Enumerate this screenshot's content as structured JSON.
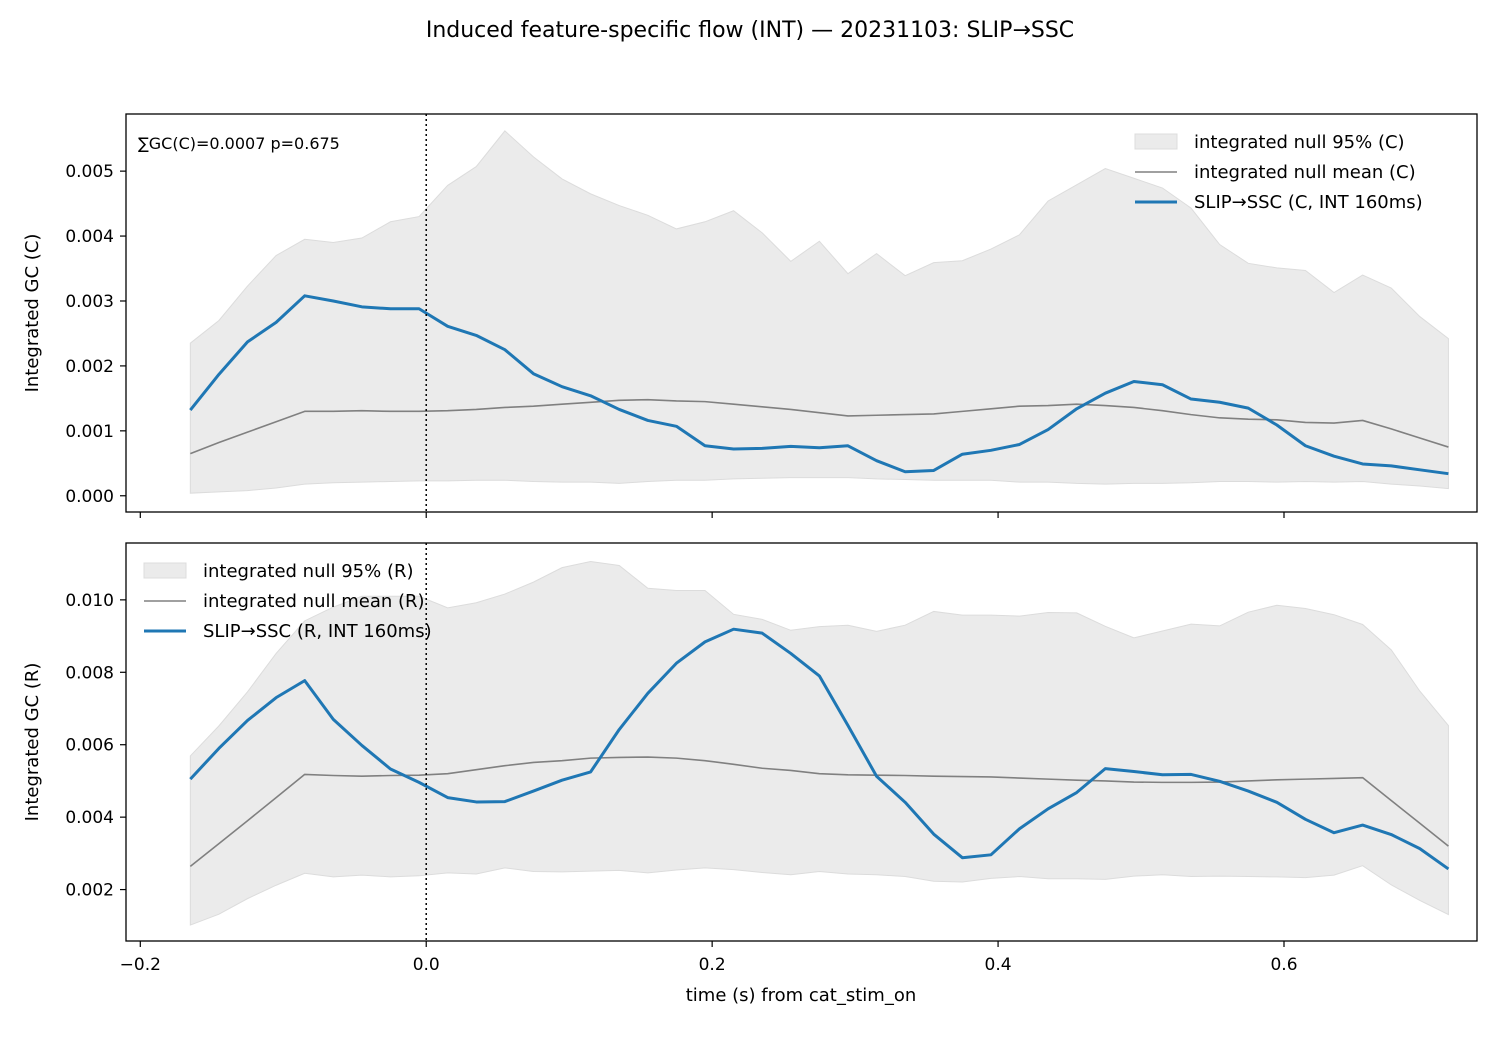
{
  "figure": {
    "title": "Induced feature-specific flow (INT) — 20231103: SLIP→SSC",
    "xlabel": "time (s) from cat_stim_on"
  },
  "colors": {
    "series_line": "#1f77b4",
    "null_mean": "#808080",
    "null_band": "#ebebeb",
    "band_edge": "#dcdcdc",
    "axes": "#000000"
  },
  "chart_data": [
    {
      "type": "line",
      "panel": "top",
      "ylabel": "Integrated GC (C)",
      "annotation": "∑GC(C)=0.0007  p=0.675",
      "legend_position": "upper right",
      "legend": [
        "integrated null 95% (C)",
        "integrated null mean (C)",
        "SLIP→SSC (C, INT 160ms)"
      ],
      "xlim": [
        -0.21,
        0.735
      ],
      "ylim": [
        -0.00025,
        0.00588
      ],
      "xticks": [
        -0.2,
        0.0,
        0.2,
        0.4,
        0.6
      ],
      "xtick_labels": [
        "−0.2",
        "0.0",
        "0.2",
        "0.4",
        "0.6"
      ],
      "yticks": [
        0.0,
        0.001,
        0.002,
        0.003,
        0.004,
        0.005
      ],
      "ytick_labels": [
        "0.000",
        "0.001",
        "0.002",
        "0.003",
        "0.004",
        "0.005"
      ],
      "vline_x": 0.0,
      "x": [
        -0.165,
        -0.145,
        -0.125,
        -0.105,
        -0.085,
        -0.065,
        -0.045,
        -0.025,
        -0.005,
        0.015,
        0.035,
        0.055,
        0.075,
        0.095,
        0.115,
        0.135,
        0.155,
        0.175,
        0.195,
        0.215,
        0.235,
        0.255,
        0.275,
        0.295,
        0.315,
        0.335,
        0.355,
        0.375,
        0.395,
        0.415,
        0.435,
        0.455,
        0.475,
        0.495,
        0.515,
        0.535,
        0.555,
        0.575,
        0.595,
        0.615,
        0.635,
        0.655,
        0.675,
        0.695,
        0.715
      ],
      "series": [
        {
          "name": "SLIP→SSC (C, INT 160ms)",
          "role": "signal",
          "values": [
            0.00132,
            0.00187,
            0.00237,
            0.00267,
            0.00308,
            0.003,
            0.00291,
            0.00288,
            0.00288,
            0.00261,
            0.00247,
            0.00225,
            0.00188,
            0.00168,
            0.00154,
            0.00133,
            0.00116,
            0.00107,
            0.00077,
            0.00072,
            0.00073,
            0.00076,
            0.00074,
            0.00077,
            0.00054,
            0.00037,
            0.00039,
            0.00064,
            0.0007,
            0.00079,
            0.00102,
            0.00134,
            0.00158,
            0.00176,
            0.00171,
            0.00149,
            0.00144,
            0.00135,
            0.00109,
            0.00077,
            0.00061,
            0.00049,
            0.00046,
            0.0004,
            0.00034
          ]
        },
        {
          "name": "integrated null mean (C)",
          "role": "mean",
          "values": [
            0.00065,
            0.00082,
            0.00098,
            0.00114,
            0.0013,
            0.0013,
            0.00131,
            0.0013,
            0.0013,
            0.00131,
            0.00133,
            0.00136,
            0.00138,
            0.00141,
            0.00144,
            0.00147,
            0.00148,
            0.00146,
            0.00145,
            0.00141,
            0.00137,
            0.00133,
            0.00128,
            0.00123,
            0.00124,
            0.00125,
            0.00126,
            0.0013,
            0.00134,
            0.00138,
            0.00139,
            0.00141,
            0.00139,
            0.00136,
            0.00131,
            0.00125,
            0.0012,
            0.00118,
            0.00117,
            0.00113,
            0.00112,
            0.00116,
            0.00103,
            0.00089,
            0.00075
          ]
        }
      ],
      "band": {
        "name": "integrated null 95% (C)",
        "lower": [
          4e-05,
          6e-05,
          8e-05,
          0.00012,
          0.00018,
          0.0002,
          0.00021,
          0.00022,
          0.00023,
          0.00023,
          0.00024,
          0.00024,
          0.00022,
          0.00021,
          0.00021,
          0.00019,
          0.00022,
          0.00024,
          0.00024,
          0.00026,
          0.00027,
          0.00028,
          0.00028,
          0.00028,
          0.00026,
          0.00025,
          0.00024,
          0.00024,
          0.00024,
          0.00021,
          0.00021,
          0.00019,
          0.00018,
          0.00019,
          0.00019,
          0.0002,
          0.00022,
          0.00022,
          0.00021,
          0.00022,
          0.00021,
          0.00022,
          0.00018,
          0.00015,
          0.00011
        ],
        "upper": [
          0.00235,
          0.0027,
          0.00323,
          0.0037,
          0.00395,
          0.0039,
          0.00397,
          0.00422,
          0.0043,
          0.00478,
          0.00507,
          0.00562,
          0.00522,
          0.00488,
          0.00465,
          0.00447,
          0.00432,
          0.00411,
          0.00422,
          0.00439,
          0.00405,
          0.00361,
          0.00392,
          0.00342,
          0.00373,
          0.00339,
          0.00359,
          0.00362,
          0.0038,
          0.00402,
          0.00454,
          0.00479,
          0.00504,
          0.00489,
          0.00474,
          0.00443,
          0.00387,
          0.00358,
          0.00351,
          0.00347,
          0.00313,
          0.0034,
          0.0032,
          0.00276,
          0.00242
        ]
      }
    },
    {
      "type": "line",
      "panel": "bottom",
      "ylabel": "Integrated GC (R)",
      "legend_position": "upper left",
      "legend": [
        "integrated null 95% (R)",
        "integrated null mean (R)",
        "SLIP→SSC (R, INT 160ms)"
      ],
      "xlim": [
        -0.21,
        0.735
      ],
      "ylim": [
        0.00058,
        0.01157
      ],
      "xticks": [
        -0.2,
        0.0,
        0.2,
        0.4,
        0.6
      ],
      "xtick_labels": [
        "−0.2",
        "0.0",
        "0.2",
        "0.4",
        "0.6"
      ],
      "yticks": [
        0.002,
        0.004,
        0.006,
        0.008,
        0.01
      ],
      "ytick_labels": [
        "0.002",
        "0.004",
        "0.006",
        "0.008",
        "0.010"
      ],
      "vline_x": 0.0,
      "x": [
        -0.165,
        -0.145,
        -0.125,
        -0.105,
        -0.085,
        -0.065,
        -0.045,
        -0.025,
        -0.005,
        0.015,
        0.035,
        0.055,
        0.075,
        0.095,
        0.115,
        0.135,
        0.155,
        0.175,
        0.195,
        0.215,
        0.235,
        0.255,
        0.275,
        0.295,
        0.315,
        0.335,
        0.355,
        0.375,
        0.395,
        0.415,
        0.435,
        0.455,
        0.475,
        0.495,
        0.515,
        0.535,
        0.555,
        0.575,
        0.595,
        0.615,
        0.635,
        0.655,
        0.675,
        0.695,
        0.715
      ],
      "series": [
        {
          "name": "SLIP→SSC (R, INT 160ms)",
          "role": "signal",
          "values": [
            0.00505,
            0.0059,
            0.00667,
            0.0073,
            0.00777,
            0.0067,
            0.00598,
            0.00533,
            0.00496,
            0.00454,
            0.00442,
            0.00443,
            0.00472,
            0.00502,
            0.00525,
            0.00642,
            0.00742,
            0.00825,
            0.00884,
            0.00919,
            0.00908,
            0.00852,
            0.0079,
            0.00653,
            0.00513,
            0.00441,
            0.00353,
            0.00288,
            0.00296,
            0.00368,
            0.00423,
            0.00468,
            0.00534,
            0.00526,
            0.00517,
            0.00518,
            0.00499,
            0.00472,
            0.00441,
            0.00394,
            0.00357,
            0.00378,
            0.00352,
            0.00313,
            0.00257
          ]
        },
        {
          "name": "integrated null mean (R)",
          "role": "mean",
          "values": [
            0.00264,
            0.00327,
            0.0039,
            0.00454,
            0.00518,
            0.00515,
            0.00513,
            0.00515,
            0.00516,
            0.0052,
            0.00531,
            0.00542,
            0.00551,
            0.00556,
            0.00563,
            0.00565,
            0.00566,
            0.00563,
            0.00556,
            0.00546,
            0.00535,
            0.00529,
            0.0052,
            0.00517,
            0.00516,
            0.00515,
            0.00513,
            0.00512,
            0.00511,
            0.00508,
            0.00505,
            0.00502,
            0.005,
            0.00497,
            0.00496,
            0.00496,
            0.00497,
            0.005,
            0.00503,
            0.00505,
            0.00507,
            0.00509,
            0.00446,
            0.00383,
            0.0032
          ]
        }
      ],
      "band": {
        "name": "integrated null 95% (R)",
        "lower": [
          0.00102,
          0.00132,
          0.00175,
          0.00212,
          0.00245,
          0.00235,
          0.0024,
          0.00235,
          0.00238,
          0.00246,
          0.00243,
          0.0026,
          0.0025,
          0.00249,
          0.00251,
          0.00253,
          0.00246,
          0.00254,
          0.0026,
          0.00255,
          0.00247,
          0.00241,
          0.0025,
          0.00243,
          0.00241,
          0.00236,
          0.00223,
          0.00221,
          0.00231,
          0.00236,
          0.0023,
          0.0023,
          0.00228,
          0.00237,
          0.00241,
          0.00236,
          0.00237,
          0.00236,
          0.00235,
          0.00233,
          0.0024,
          0.00266,
          0.00213,
          0.0017,
          0.00131
        ],
        "upper": [
          0.00569,
          0.00652,
          0.00746,
          0.00852,
          0.00942,
          0.0098,
          0.0101,
          0.0101,
          0.0101,
          0.00978,
          0.00992,
          0.01016,
          0.01049,
          0.01089,
          0.01106,
          0.01095,
          0.01032,
          0.01026,
          0.01026,
          0.0096,
          0.00946,
          0.00916,
          0.00926,
          0.0093,
          0.00913,
          0.0093,
          0.00968,
          0.00958,
          0.00958,
          0.00955,
          0.00965,
          0.00964,
          0.00927,
          0.00895,
          0.00914,
          0.00933,
          0.00928,
          0.00966,
          0.00985,
          0.00976,
          0.00959,
          0.00932,
          0.00862,
          0.00748,
          0.00653
        ]
      }
    }
  ]
}
